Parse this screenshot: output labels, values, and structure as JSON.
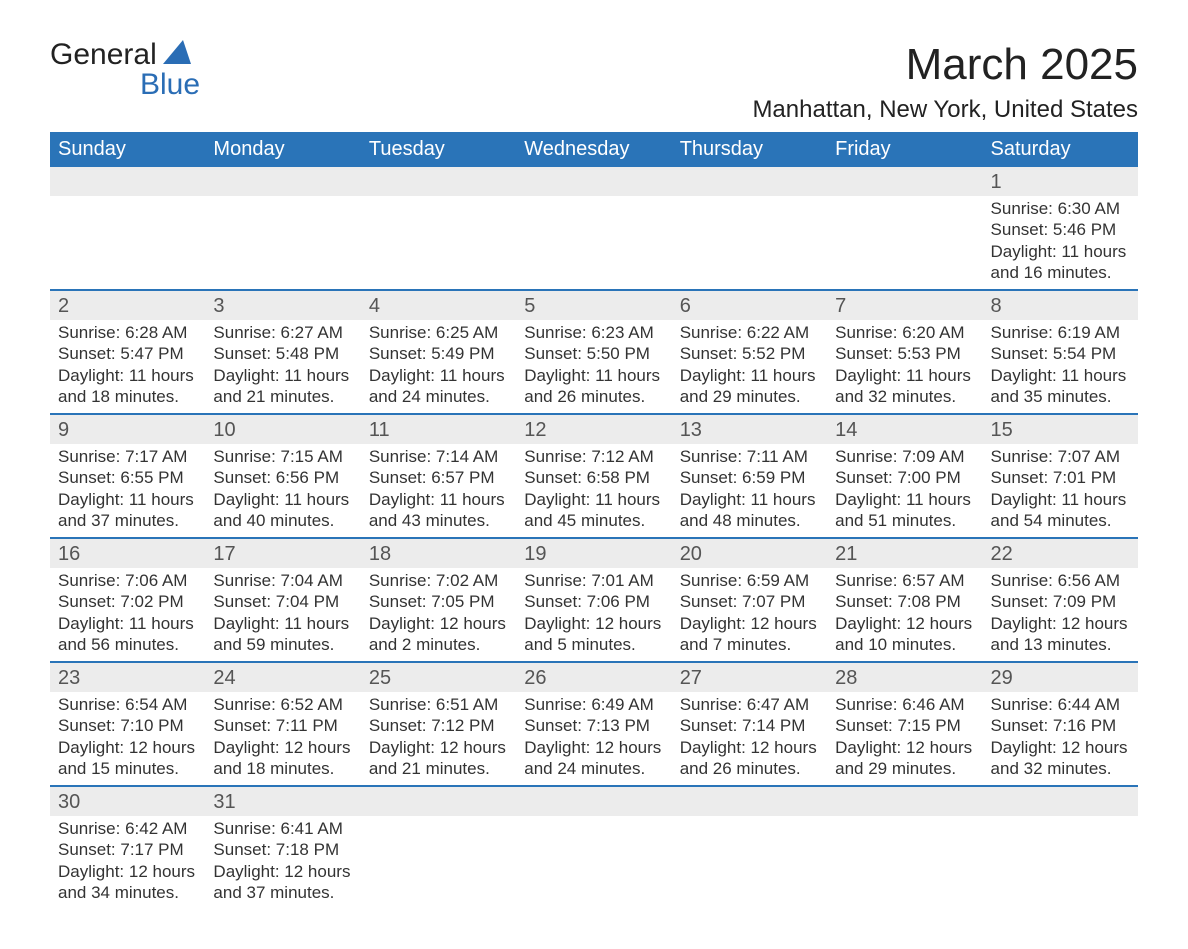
{
  "brand": {
    "line1": "General",
    "line2": "Blue",
    "sail_color": "#2a6db5"
  },
  "title": "March 2025",
  "location": "Manhattan, New York, United States",
  "colors": {
    "header_bg": "#2a74b8",
    "header_fg": "#ffffff",
    "daynum_bg": "#ececec",
    "border": "#2a74b8",
    "text": "#333333"
  },
  "weekdays": [
    "Sunday",
    "Monday",
    "Tuesday",
    "Wednesday",
    "Thursday",
    "Friday",
    "Saturday"
  ],
  "weeks": [
    [
      null,
      null,
      null,
      null,
      null,
      null,
      {
        "n": "1",
        "sunrise": "Sunrise: 6:30 AM",
        "sunset": "Sunset: 5:46 PM",
        "daylight": "Daylight: 11 hours and 16 minutes."
      }
    ],
    [
      {
        "n": "2",
        "sunrise": "Sunrise: 6:28 AM",
        "sunset": "Sunset: 5:47 PM",
        "daylight": "Daylight: 11 hours and 18 minutes."
      },
      {
        "n": "3",
        "sunrise": "Sunrise: 6:27 AM",
        "sunset": "Sunset: 5:48 PM",
        "daylight": "Daylight: 11 hours and 21 minutes."
      },
      {
        "n": "4",
        "sunrise": "Sunrise: 6:25 AM",
        "sunset": "Sunset: 5:49 PM",
        "daylight": "Daylight: 11 hours and 24 minutes."
      },
      {
        "n": "5",
        "sunrise": "Sunrise: 6:23 AM",
        "sunset": "Sunset: 5:50 PM",
        "daylight": "Daylight: 11 hours and 26 minutes."
      },
      {
        "n": "6",
        "sunrise": "Sunrise: 6:22 AM",
        "sunset": "Sunset: 5:52 PM",
        "daylight": "Daylight: 11 hours and 29 minutes."
      },
      {
        "n": "7",
        "sunrise": "Sunrise: 6:20 AM",
        "sunset": "Sunset: 5:53 PM",
        "daylight": "Daylight: 11 hours and 32 minutes."
      },
      {
        "n": "8",
        "sunrise": "Sunrise: 6:19 AM",
        "sunset": "Sunset: 5:54 PM",
        "daylight": "Daylight: 11 hours and 35 minutes."
      }
    ],
    [
      {
        "n": "9",
        "sunrise": "Sunrise: 7:17 AM",
        "sunset": "Sunset: 6:55 PM",
        "daylight": "Daylight: 11 hours and 37 minutes."
      },
      {
        "n": "10",
        "sunrise": "Sunrise: 7:15 AM",
        "sunset": "Sunset: 6:56 PM",
        "daylight": "Daylight: 11 hours and 40 minutes."
      },
      {
        "n": "11",
        "sunrise": "Sunrise: 7:14 AM",
        "sunset": "Sunset: 6:57 PM",
        "daylight": "Daylight: 11 hours and 43 minutes."
      },
      {
        "n": "12",
        "sunrise": "Sunrise: 7:12 AM",
        "sunset": "Sunset: 6:58 PM",
        "daylight": "Daylight: 11 hours and 45 minutes."
      },
      {
        "n": "13",
        "sunrise": "Sunrise: 7:11 AM",
        "sunset": "Sunset: 6:59 PM",
        "daylight": "Daylight: 11 hours and 48 minutes."
      },
      {
        "n": "14",
        "sunrise": "Sunrise: 7:09 AM",
        "sunset": "Sunset: 7:00 PM",
        "daylight": "Daylight: 11 hours and 51 minutes."
      },
      {
        "n": "15",
        "sunrise": "Sunrise: 7:07 AM",
        "sunset": "Sunset: 7:01 PM",
        "daylight": "Daylight: 11 hours and 54 minutes."
      }
    ],
    [
      {
        "n": "16",
        "sunrise": "Sunrise: 7:06 AM",
        "sunset": "Sunset: 7:02 PM",
        "daylight": "Daylight: 11 hours and 56 minutes."
      },
      {
        "n": "17",
        "sunrise": "Sunrise: 7:04 AM",
        "sunset": "Sunset: 7:04 PM",
        "daylight": "Daylight: 11 hours and 59 minutes."
      },
      {
        "n": "18",
        "sunrise": "Sunrise: 7:02 AM",
        "sunset": "Sunset: 7:05 PM",
        "daylight": "Daylight: 12 hours and 2 minutes."
      },
      {
        "n": "19",
        "sunrise": "Sunrise: 7:01 AM",
        "sunset": "Sunset: 7:06 PM",
        "daylight": "Daylight: 12 hours and 5 minutes."
      },
      {
        "n": "20",
        "sunrise": "Sunrise: 6:59 AM",
        "sunset": "Sunset: 7:07 PM",
        "daylight": "Daylight: 12 hours and 7 minutes."
      },
      {
        "n": "21",
        "sunrise": "Sunrise: 6:57 AM",
        "sunset": "Sunset: 7:08 PM",
        "daylight": "Daylight: 12 hours and 10 minutes."
      },
      {
        "n": "22",
        "sunrise": "Sunrise: 6:56 AM",
        "sunset": "Sunset: 7:09 PM",
        "daylight": "Daylight: 12 hours and 13 minutes."
      }
    ],
    [
      {
        "n": "23",
        "sunrise": "Sunrise: 6:54 AM",
        "sunset": "Sunset: 7:10 PM",
        "daylight": "Daylight: 12 hours and 15 minutes."
      },
      {
        "n": "24",
        "sunrise": "Sunrise: 6:52 AM",
        "sunset": "Sunset: 7:11 PM",
        "daylight": "Daylight: 12 hours and 18 minutes."
      },
      {
        "n": "25",
        "sunrise": "Sunrise: 6:51 AM",
        "sunset": "Sunset: 7:12 PM",
        "daylight": "Daylight: 12 hours and 21 minutes."
      },
      {
        "n": "26",
        "sunrise": "Sunrise: 6:49 AM",
        "sunset": "Sunset: 7:13 PM",
        "daylight": "Daylight: 12 hours and 24 minutes."
      },
      {
        "n": "27",
        "sunrise": "Sunrise: 6:47 AM",
        "sunset": "Sunset: 7:14 PM",
        "daylight": "Daylight: 12 hours and 26 minutes."
      },
      {
        "n": "28",
        "sunrise": "Sunrise: 6:46 AM",
        "sunset": "Sunset: 7:15 PM",
        "daylight": "Daylight: 12 hours and 29 minutes."
      },
      {
        "n": "29",
        "sunrise": "Sunrise: 6:44 AM",
        "sunset": "Sunset: 7:16 PM",
        "daylight": "Daylight: 12 hours and 32 minutes."
      }
    ],
    [
      {
        "n": "30",
        "sunrise": "Sunrise: 6:42 AM",
        "sunset": "Sunset: 7:17 PM",
        "daylight": "Daylight: 12 hours and 34 minutes."
      },
      {
        "n": "31",
        "sunrise": "Sunrise: 6:41 AM",
        "sunset": "Sunset: 7:18 PM",
        "daylight": "Daylight: 12 hours and 37 minutes."
      },
      null,
      null,
      null,
      null,
      null
    ]
  ]
}
